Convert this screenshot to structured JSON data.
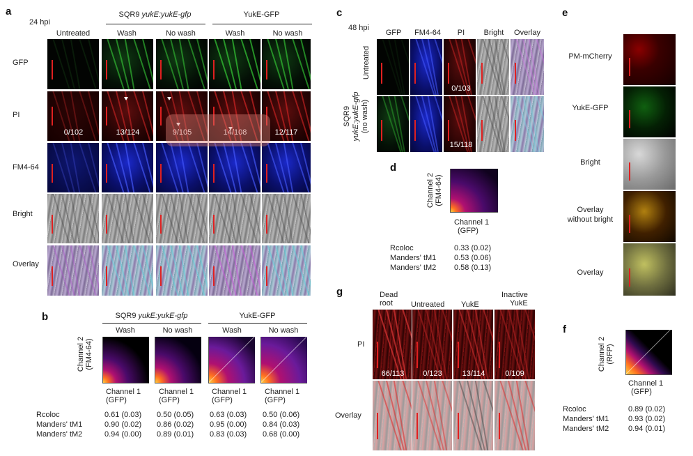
{
  "panel_a": {
    "letter": "a",
    "time": "24 hpi",
    "group1": "SQR9 ",
    "group1_gene": "yukE:yukE-gfp",
    "group2": "YukE-GFP",
    "columns": [
      "Untreated",
      "Wash",
      "No wash",
      "Wash",
      "No wash"
    ],
    "rows": [
      "GFP",
      "PI",
      "FM4-64",
      "Bright",
      "Overlay"
    ],
    "pi_counts": [
      "0/102",
      "13/124",
      "9/105",
      "14/108",
      "12/117"
    ]
  },
  "panel_b": {
    "letter": "b",
    "group1": "SQR9 ",
    "group1_gene": "yukE:yukE-gfp",
    "group2": "YukE-GFP",
    "columns": [
      "Wash",
      "No wash",
      "Wash",
      "No wash"
    ],
    "ylabel_line1": "Channel 2",
    "ylabel_line2": "(FM4-64)",
    "xlabel_line1": "Channel 1",
    "xlabel_line2": "(GFP)",
    "stat_labels": [
      "Rcoloc",
      "Manders' tM1",
      "Manders' tM2"
    ],
    "stats": [
      [
        "0.61 (0.03)",
        "0.90 (0.02)",
        "0.94 (0.00)"
      ],
      [
        "0.50 (0.05)",
        "0.86 (0.02)",
        "0.89 (0.01)"
      ],
      [
        "0.63 (0.03)",
        "0.95 (0.00)",
        "0.83 (0.03)"
      ],
      [
        "0.50 (0.06)",
        "0.84 (0.03)",
        "0.68 (0.00)"
      ]
    ]
  },
  "panel_c": {
    "letter": "c",
    "time": "48 hpi",
    "columns": [
      "GFP",
      "FM4-64",
      "PI",
      "Bright",
      "Overlay"
    ],
    "row1": "Untreated",
    "row2_line1": "SQR9",
    "row2_line2": "yukE:yukE-gfp",
    "row2_line3": "(no wash)",
    "pi_counts": [
      "0/103",
      "15/118"
    ]
  },
  "panel_d": {
    "letter": "d",
    "ylabel_line1": "Channel 2",
    "ylabel_line2": "(FM4-64)",
    "xlabel_line1": "Channel 1",
    "xlabel_line2": "(GFP)",
    "stat_labels": [
      "Rcoloc",
      "Manders' tM1",
      "Manders' tM2"
    ],
    "stats": [
      "0.33 (0.02)",
      "0.53 (0.06)",
      "0.58 (0.13)"
    ]
  },
  "panel_e": {
    "letter": "e",
    "rows": [
      "PM-mCherry",
      "YukE-GFP",
      "Bright",
      "Overlay",
      "without bright",
      "Overlay"
    ]
  },
  "panel_f": {
    "letter": "f",
    "ylabel_line1": "Channel 2",
    "ylabel_line2": "(RFP)",
    "xlabel_line1": "Channel 1",
    "xlabel_line2": "(GFP)",
    "stat_labels": [
      "Rcoloc",
      "Manders' tM1",
      "Manders' tM2"
    ],
    "stats": [
      "0.89 (0.02)",
      "0.93 (0.02)",
      "0.94 (0.01)"
    ]
  },
  "panel_g": {
    "letter": "g",
    "columns": [
      [
        "Dead",
        "root"
      ],
      [
        "Untreated",
        ""
      ],
      [
        "YukE",
        ""
      ],
      [
        "Inactive",
        "YukE"
      ]
    ],
    "rows": [
      "PI",
      "Overlay"
    ],
    "pi_counts": [
      "66/113",
      "0/123",
      "13/114",
      "0/109"
    ]
  },
  "colors": {
    "scale_bar": "#e02020",
    "gfp": "#20c020",
    "pi": "#d01818",
    "fm4_64": "#2030e0"
  }
}
